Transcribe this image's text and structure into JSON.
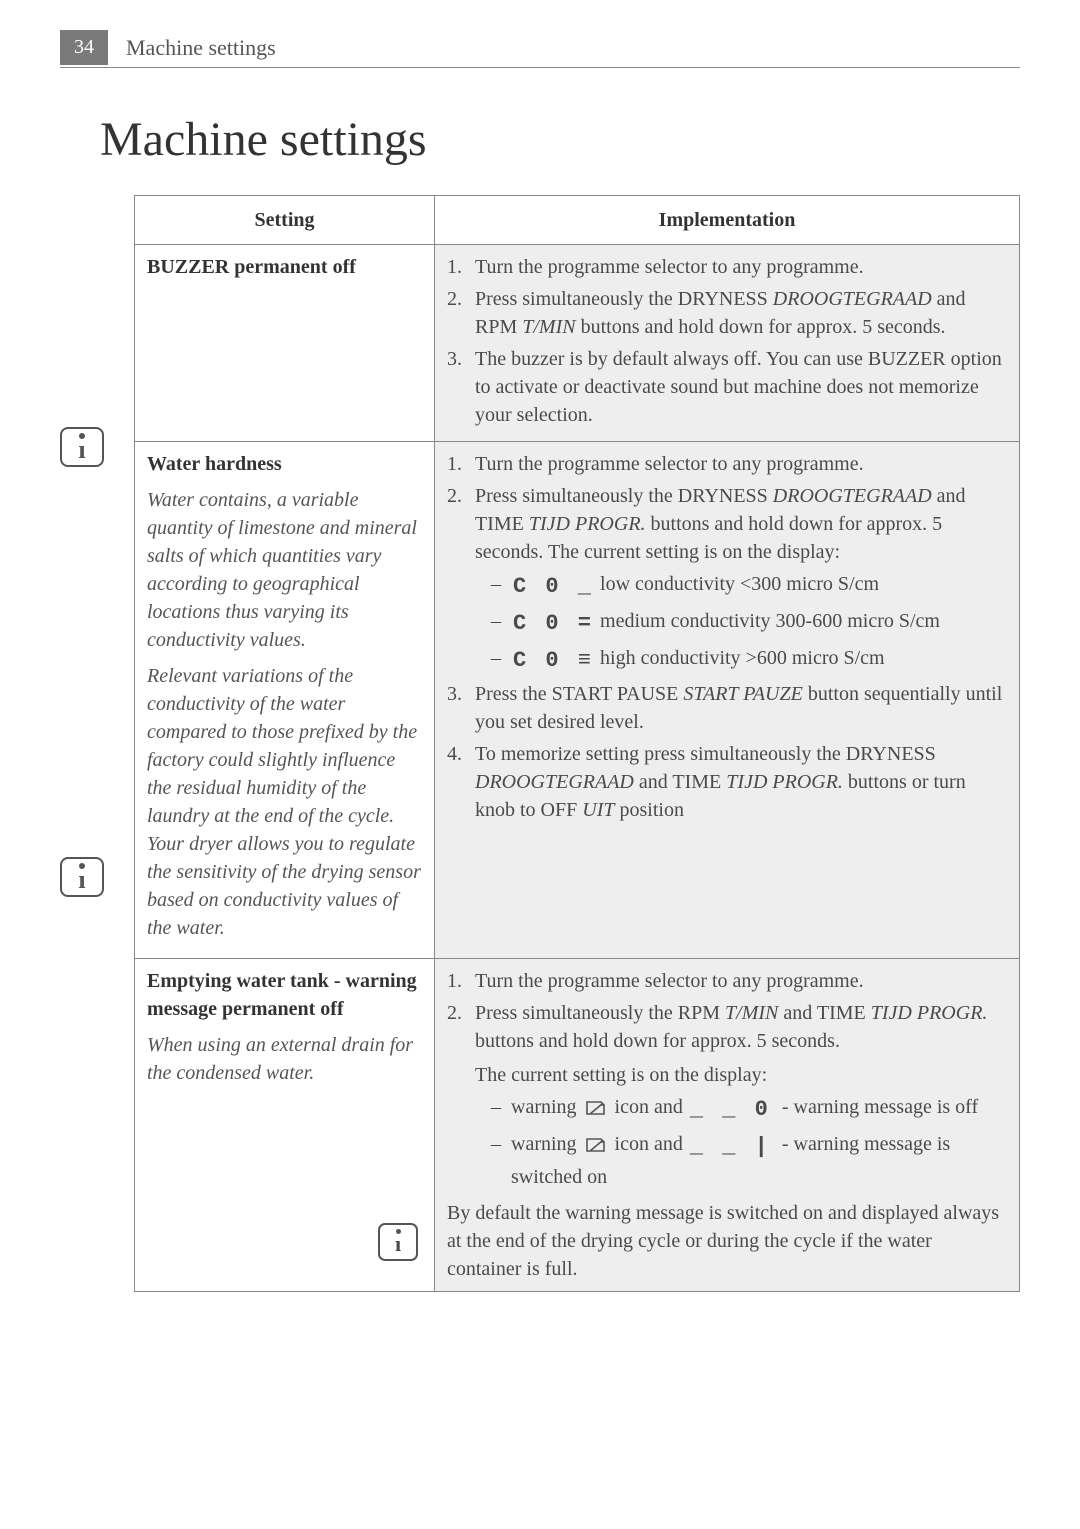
{
  "header": {
    "page_number": "34",
    "running_title": "Machine settings"
  },
  "title": "Machine settings",
  "columns": {
    "setting": "Setting",
    "implementation": "Implementation"
  },
  "rows": [
    {
      "setting_title": "BUZZER permanent off",
      "impl": [
        "Turn the programme selector to any programme.",
        "Press simultaneously the DRYNESS <i>DROOGTEGRAAD</i> and RPM <i>T/MIN</i> buttons and hold down for approx. 5 seconds.",
        "The buzzer is by default always off. You can use BUZZER option to activate or deactivate sound but machine does not memorize your selection."
      ]
    },
    {
      "setting_title": "Water hardness",
      "setting_desc": [
        "Water contains, a variable quantity of limestone and mineral salts of which quantities vary according to geographical locations thus varying its conductivity values.",
        "Relevant variations of the conductivity of the water compared to those prefixed by the factory could slightly influence the residual humidity of the laundry at the end of the cycle. Your dryer allows you to regulate the sensitivity of the drying sensor based on conductivity values of the water."
      ],
      "impl_pre": [
        "Turn the programme selector to any programme.",
        "Press simultaneously the DRYNESS <i>DROOGTEGRAAD</i> and TIME <i>TIJD PROGR.</i> buttons and hold down for approx. 5 seconds. The current setting is on the display:"
      ],
      "levels": [
        {
          "code": "C 0 _",
          "text": "low conductivity <300 micro S/cm"
        },
        {
          "code": "C 0 =",
          "text": "medium conductivity 300-600 micro S/cm"
        },
        {
          "code": "C 0 ≡",
          "text": "high conductivity >600 micro S/cm"
        }
      ],
      "impl_post": [
        "Press the START PAUSE <i>START PAUZE</i> button sequentially until you set desired level.",
        "To memorize setting press simultaneously the DRYNESS <i>DROOGTEGRAAD</i> and TIME <i>TIJD PROGR.</i> buttons or turn knob to OFF <i>UIT</i> position"
      ]
    },
    {
      "setting_title": "Emptying water tank - warning message permanent off",
      "setting_desc": [
        "When using an external drain for the condensed water."
      ],
      "impl_pre": [
        "Turn the programme selector to any programme.",
        "Press simultaneously the RPM <i>T/MIN</i> and TIME <i>TIJD PROGR.</i> buttons and hold down for approx. 5 seconds."
      ],
      "current_setting_line": "The current setting is on the display:",
      "warn_states": [
        {
          "code": "_ _ 0",
          "text_pre": "warning",
          "text_mid": "icon and",
          "text_post": "- warning message is off"
        },
        {
          "code": "_ _ |",
          "text_pre": "warning",
          "text_mid": "icon and",
          "text_post": "- warning message is switched on"
        }
      ],
      "note": "By default the warning message is switched on and displayed always at the end of the drying cycle or during the cycle if the water container is full."
    }
  ],
  "colors": {
    "header_badge_bg": "#7a7a7a",
    "impl_bg": "#eeeeee",
    "border": "#888888",
    "text": "#4a4a4a"
  }
}
